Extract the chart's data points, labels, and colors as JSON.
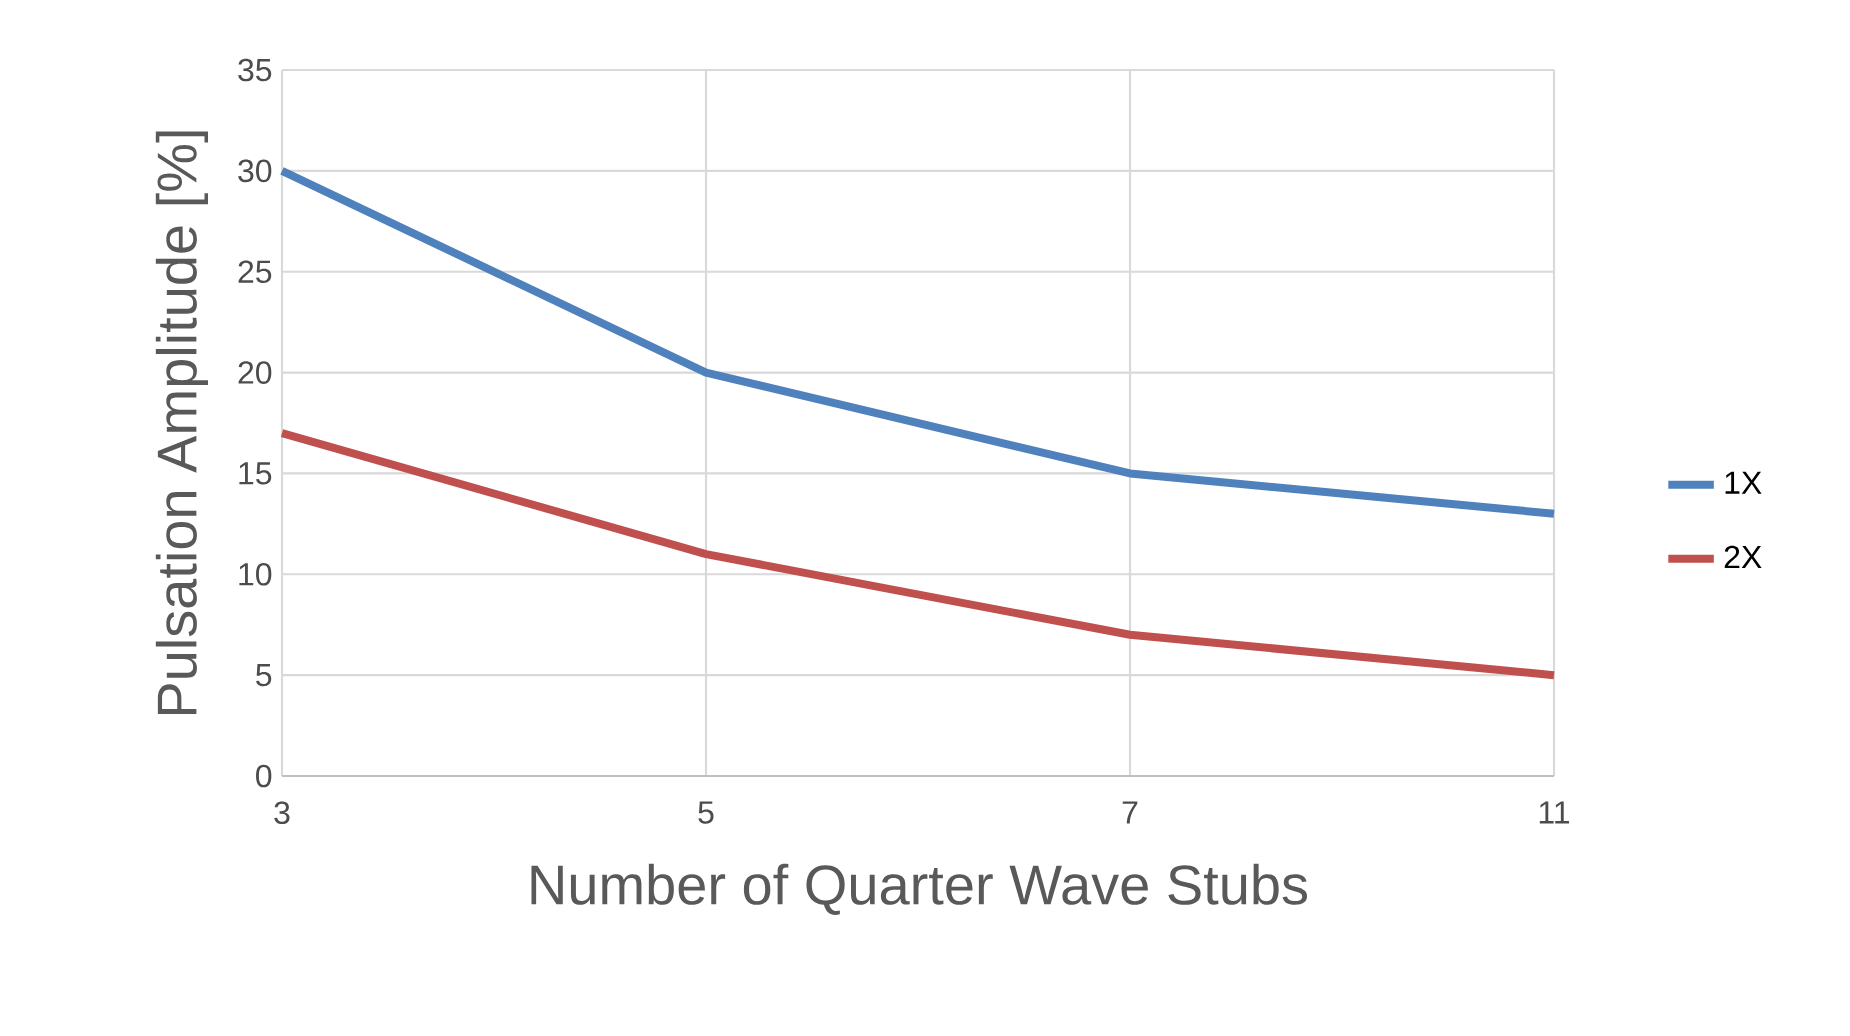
{
  "chart_data": {
    "type": "line",
    "xlabel": "Number of Quarter Wave Stubs",
    "ylabel": "Pulsation Amplitude [%]",
    "categories": [
      "3",
      "5",
      "7",
      "11"
    ],
    "series": [
      {
        "name": "1X",
        "color": "#4f81bd",
        "values": [
          30,
          20,
          15,
          13
        ]
      },
      {
        "name": "2X",
        "color": "#c0504d",
        "values": [
          17,
          11,
          7,
          5
        ]
      }
    ],
    "ylim": [
      0,
      35
    ],
    "yticks": [
      0,
      5,
      10,
      15,
      20,
      25,
      30,
      35
    ],
    "grid": true,
    "legend": "right",
    "marker": "none",
    "line_style": "solid"
  }
}
